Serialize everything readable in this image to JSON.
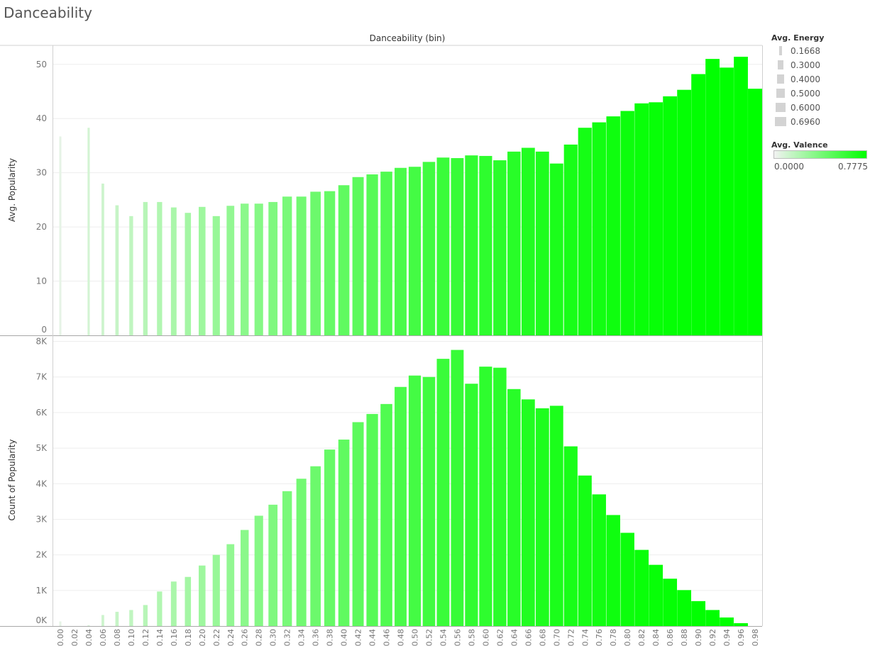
{
  "title": "Danceability",
  "colors": {
    "valence_min": "#f2f2f2",
    "valence_max": "#00ff00",
    "grid": "#eeeeee",
    "axis": "#d0d0d0",
    "size_legend": "#d3d3d3"
  },
  "legend": {
    "energy": {
      "title": "Avg. Energy",
      "items": [
        "0.1668",
        "0.3000",
        "0.4000",
        "0.5000",
        "0.6000",
        "0.6960"
      ]
    },
    "valence": {
      "title": "Avg. Valence",
      "min_label": "0.0000",
      "max_label": "0.7775"
    }
  },
  "chart_data": [
    {
      "type": "bar",
      "title": "Danceability (bin)",
      "xlabel": "Danceability (bin)",
      "ylabel": "Avg. Popularity",
      "ylim": [
        0,
        53.5
      ],
      "yticks": [
        "0",
        "10",
        "20",
        "30",
        "40",
        "50"
      ],
      "ytick_values": [
        0,
        10,
        20,
        30,
        40,
        50
      ],
      "grid": true,
      "categories": [
        "0.00",
        "0.02",
        "0.04",
        "0.06",
        "0.08",
        "0.10",
        "0.12",
        "0.14",
        "0.16",
        "0.18",
        "0.20",
        "0.22",
        "0.24",
        "0.26",
        "0.28",
        "0.30",
        "0.32",
        "0.34",
        "0.36",
        "0.38",
        "0.40",
        "0.42",
        "0.44",
        "0.46",
        "0.48",
        "0.50",
        "0.52",
        "0.54",
        "0.56",
        "0.58",
        "0.60",
        "0.62",
        "0.64",
        "0.66",
        "0.68",
        "0.70",
        "0.72",
        "0.74",
        "0.76",
        "0.78",
        "0.80",
        "0.82",
        "0.84",
        "0.86",
        "0.88",
        "0.90",
        "0.92",
        "0.94",
        "0.96",
        "0.98"
      ],
      "values": [
        36.7,
        null,
        38.3,
        28.0,
        24.0,
        22.0,
        24.6,
        24.6,
        23.6,
        22.6,
        23.7,
        22.0,
        23.9,
        24.3,
        24.3,
        24.6,
        25.6,
        25.6,
        26.5,
        26.6,
        27.7,
        29.2,
        29.7,
        30.2,
        30.9,
        31.1,
        32.0,
        32.8,
        32.7,
        33.2,
        33.1,
        32.3,
        33.9,
        34.6,
        33.9,
        31.7,
        35.2,
        38.3,
        39.3,
        40.4,
        41.4,
        42.8,
        43.0,
        44.1,
        45.3,
        48.2,
        51.0,
        49.4,
        51.4,
        45.5
      ],
      "energy": [
        0.1668,
        null,
        0.17,
        0.19,
        0.22,
        0.24,
        0.27,
        0.3,
        0.32,
        0.34,
        0.37,
        0.39,
        0.41,
        0.43,
        0.45,
        0.47,
        0.49,
        0.51,
        0.53,
        0.55,
        0.56,
        0.57,
        0.58,
        0.59,
        0.6,
        0.61,
        0.62,
        0.63,
        0.63,
        0.64,
        0.64,
        0.65,
        0.65,
        0.66,
        0.66,
        0.66,
        0.67,
        0.67,
        0.68,
        0.68,
        0.68,
        0.69,
        0.69,
        0.69,
        0.69,
        0.69,
        0.69,
        0.69,
        0.69,
        0.696
      ],
      "valence": [
        0.04,
        null,
        0.1,
        0.12,
        0.14,
        0.16,
        0.19,
        0.21,
        0.23,
        0.25,
        0.27,
        0.29,
        0.31,
        0.33,
        0.35,
        0.37,
        0.39,
        0.41,
        0.43,
        0.45,
        0.47,
        0.48,
        0.5,
        0.52,
        0.54,
        0.56,
        0.57,
        0.59,
        0.6,
        0.62,
        0.63,
        0.64,
        0.65,
        0.67,
        0.68,
        0.69,
        0.7,
        0.71,
        0.72,
        0.73,
        0.74,
        0.75,
        0.755,
        0.76,
        0.765,
        0.77,
        0.772,
        0.774,
        0.776,
        0.7775
      ]
    },
    {
      "type": "bar",
      "xlabel": "Danceability (bin)",
      "ylabel": "Count of Popularity",
      "ylim": [
        0,
        8150
      ],
      "yticks": [
        "0K",
        "1K",
        "2K",
        "3K",
        "4K",
        "5K",
        "6K",
        "7K",
        "8K"
      ],
      "ytick_values": [
        0,
        1000,
        2000,
        3000,
        4000,
        5000,
        6000,
        7000,
        8000
      ],
      "grid": true,
      "categories": [
        "0.00",
        "0.02",
        "0.04",
        "0.06",
        "0.08",
        "0.10",
        "0.12",
        "0.14",
        "0.16",
        "0.18",
        "0.20",
        "0.22",
        "0.24",
        "0.26",
        "0.28",
        "0.30",
        "0.32",
        "0.34",
        "0.36",
        "0.38",
        "0.40",
        "0.42",
        "0.44",
        "0.46",
        "0.48",
        "0.50",
        "0.52",
        "0.54",
        "0.56",
        "0.58",
        "0.60",
        "0.62",
        "0.64",
        "0.66",
        "0.68",
        "0.70",
        "0.72",
        "0.74",
        "0.76",
        "0.78",
        "0.80",
        "0.82",
        "0.84",
        "0.86",
        "0.88",
        "0.90",
        "0.92",
        "0.94",
        "0.96",
        "0.98"
      ],
      "values": [
        130,
        null,
        20,
        310,
        400,
        450,
        590,
        970,
        1250,
        1380,
        1700,
        2000,
        2300,
        2700,
        3100,
        3410,
        3790,
        4140,
        4490,
        4960,
        5240,
        5730,
        5960,
        6240,
        6720,
        7040,
        7000,
        7510,
        7760,
        6810,
        7290,
        7260,
        6660,
        6370,
        6120,
        6190,
        5050,
        4230,
        3700,
        3120,
        2620,
        2140,
        1720,
        1330,
        1010,
        700,
        450,
        240,
        80,
        null
      ]
    }
  ]
}
